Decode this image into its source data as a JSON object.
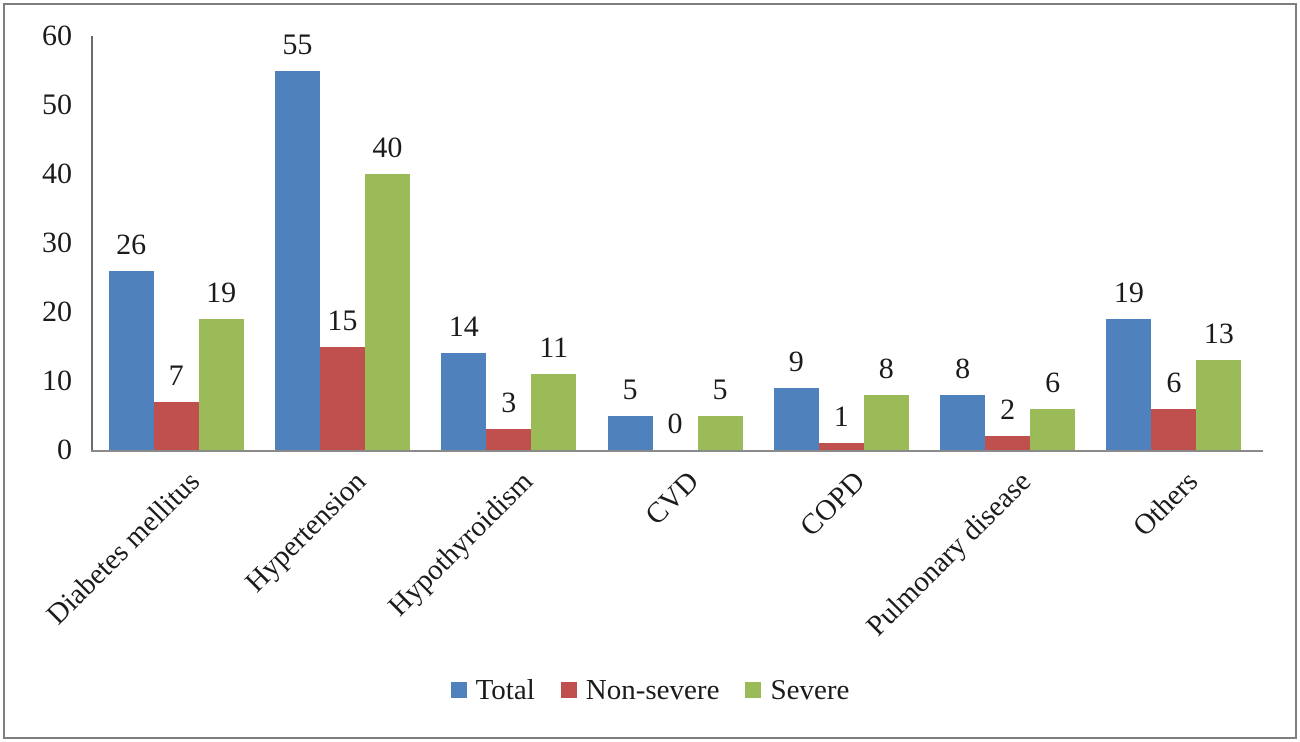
{
  "figure": {
    "background": "#ffffff",
    "border_color": "#7f7f7f",
    "x_axis_color": "#8a8a8a",
    "y_axis_color": "#6b6b6b",
    "text_color": "#1b1b1b"
  },
  "chart_data": {
    "type": "bar",
    "title": "",
    "xlabel": "",
    "ylabel": "",
    "categories": [
      "Diabetes mellitus",
      "Hypertension",
      "Hypothyroidism",
      "CVD",
      "COPD",
      "Pulmonary disease",
      "Others"
    ],
    "series": [
      {
        "name": "Total",
        "color": "#4F81BD",
        "values": [
          26,
          55,
          14,
          5,
          9,
          8,
          19
        ]
      },
      {
        "name": "Non-severe",
        "color": "#C0504D",
        "values": [
          7,
          15,
          3,
          0,
          1,
          2,
          6
        ]
      },
      {
        "name": "Severe",
        "color": "#9BBB59",
        "values": [
          19,
          40,
          11,
          5,
          8,
          6,
          13
        ]
      }
    ],
    "ylim": [
      0,
      60
    ],
    "yticks": [
      0,
      10,
      20,
      30,
      40,
      50,
      60
    ],
    "grid": false,
    "data_labels": true,
    "legend_position": "bottom",
    "category_label_rotation_deg": 45
  }
}
